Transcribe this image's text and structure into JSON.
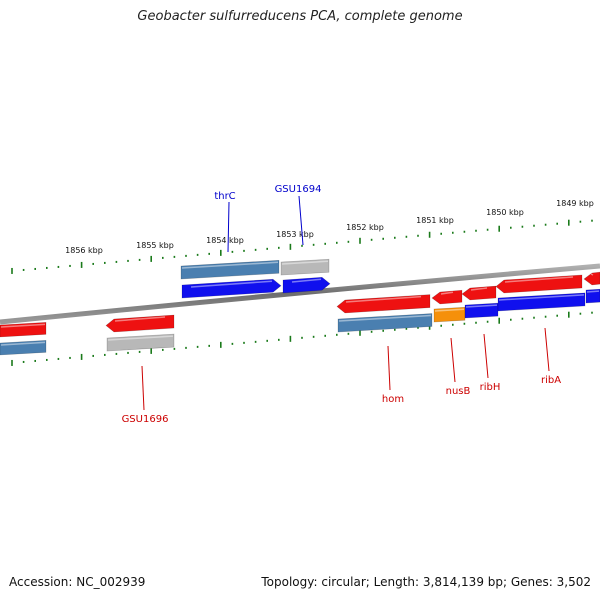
{
  "title": "Geobacter sulfurreducens PCA, complete genome",
  "footer": {
    "accession": "Accession: NC_002939",
    "stats": "Topology: circular; Length: 3,814,139 bp; Genes: 3,502"
  },
  "colors": {
    "backbone": "#7a7a7a",
    "tick": "#1a7a1a",
    "label_forward": "#0000cc",
    "label_reverse": "#cc0000",
    "gene_red": "#ee1111",
    "gene_steelblue": "#4a7fb0",
    "gene_blue": "#1010ee",
    "gene_gray": "#b8b8b8",
    "gene_orange": "#f5900a"
  },
  "scale": {
    "unit": "kbp",
    "labels": [
      "1856 kbp",
      "1855 kbp",
      "1854 kbp",
      "1853 kbp",
      "1852 kbp",
      "1851 kbp",
      "1850 kbp",
      "1849 kbp"
    ]
  },
  "gene_labels": [
    {
      "name": "thrC",
      "strand": "forward"
    },
    {
      "name": "GSU1694",
      "strand": "forward"
    },
    {
      "name": "GSU1696",
      "strand": "reverse"
    },
    {
      "name": "hom",
      "strand": "reverse"
    },
    {
      "name": "nusB",
      "strand": "reverse"
    },
    {
      "name": "ribH",
      "strand": "reverse"
    },
    {
      "name": "ribA",
      "strand": "reverse"
    }
  ]
}
